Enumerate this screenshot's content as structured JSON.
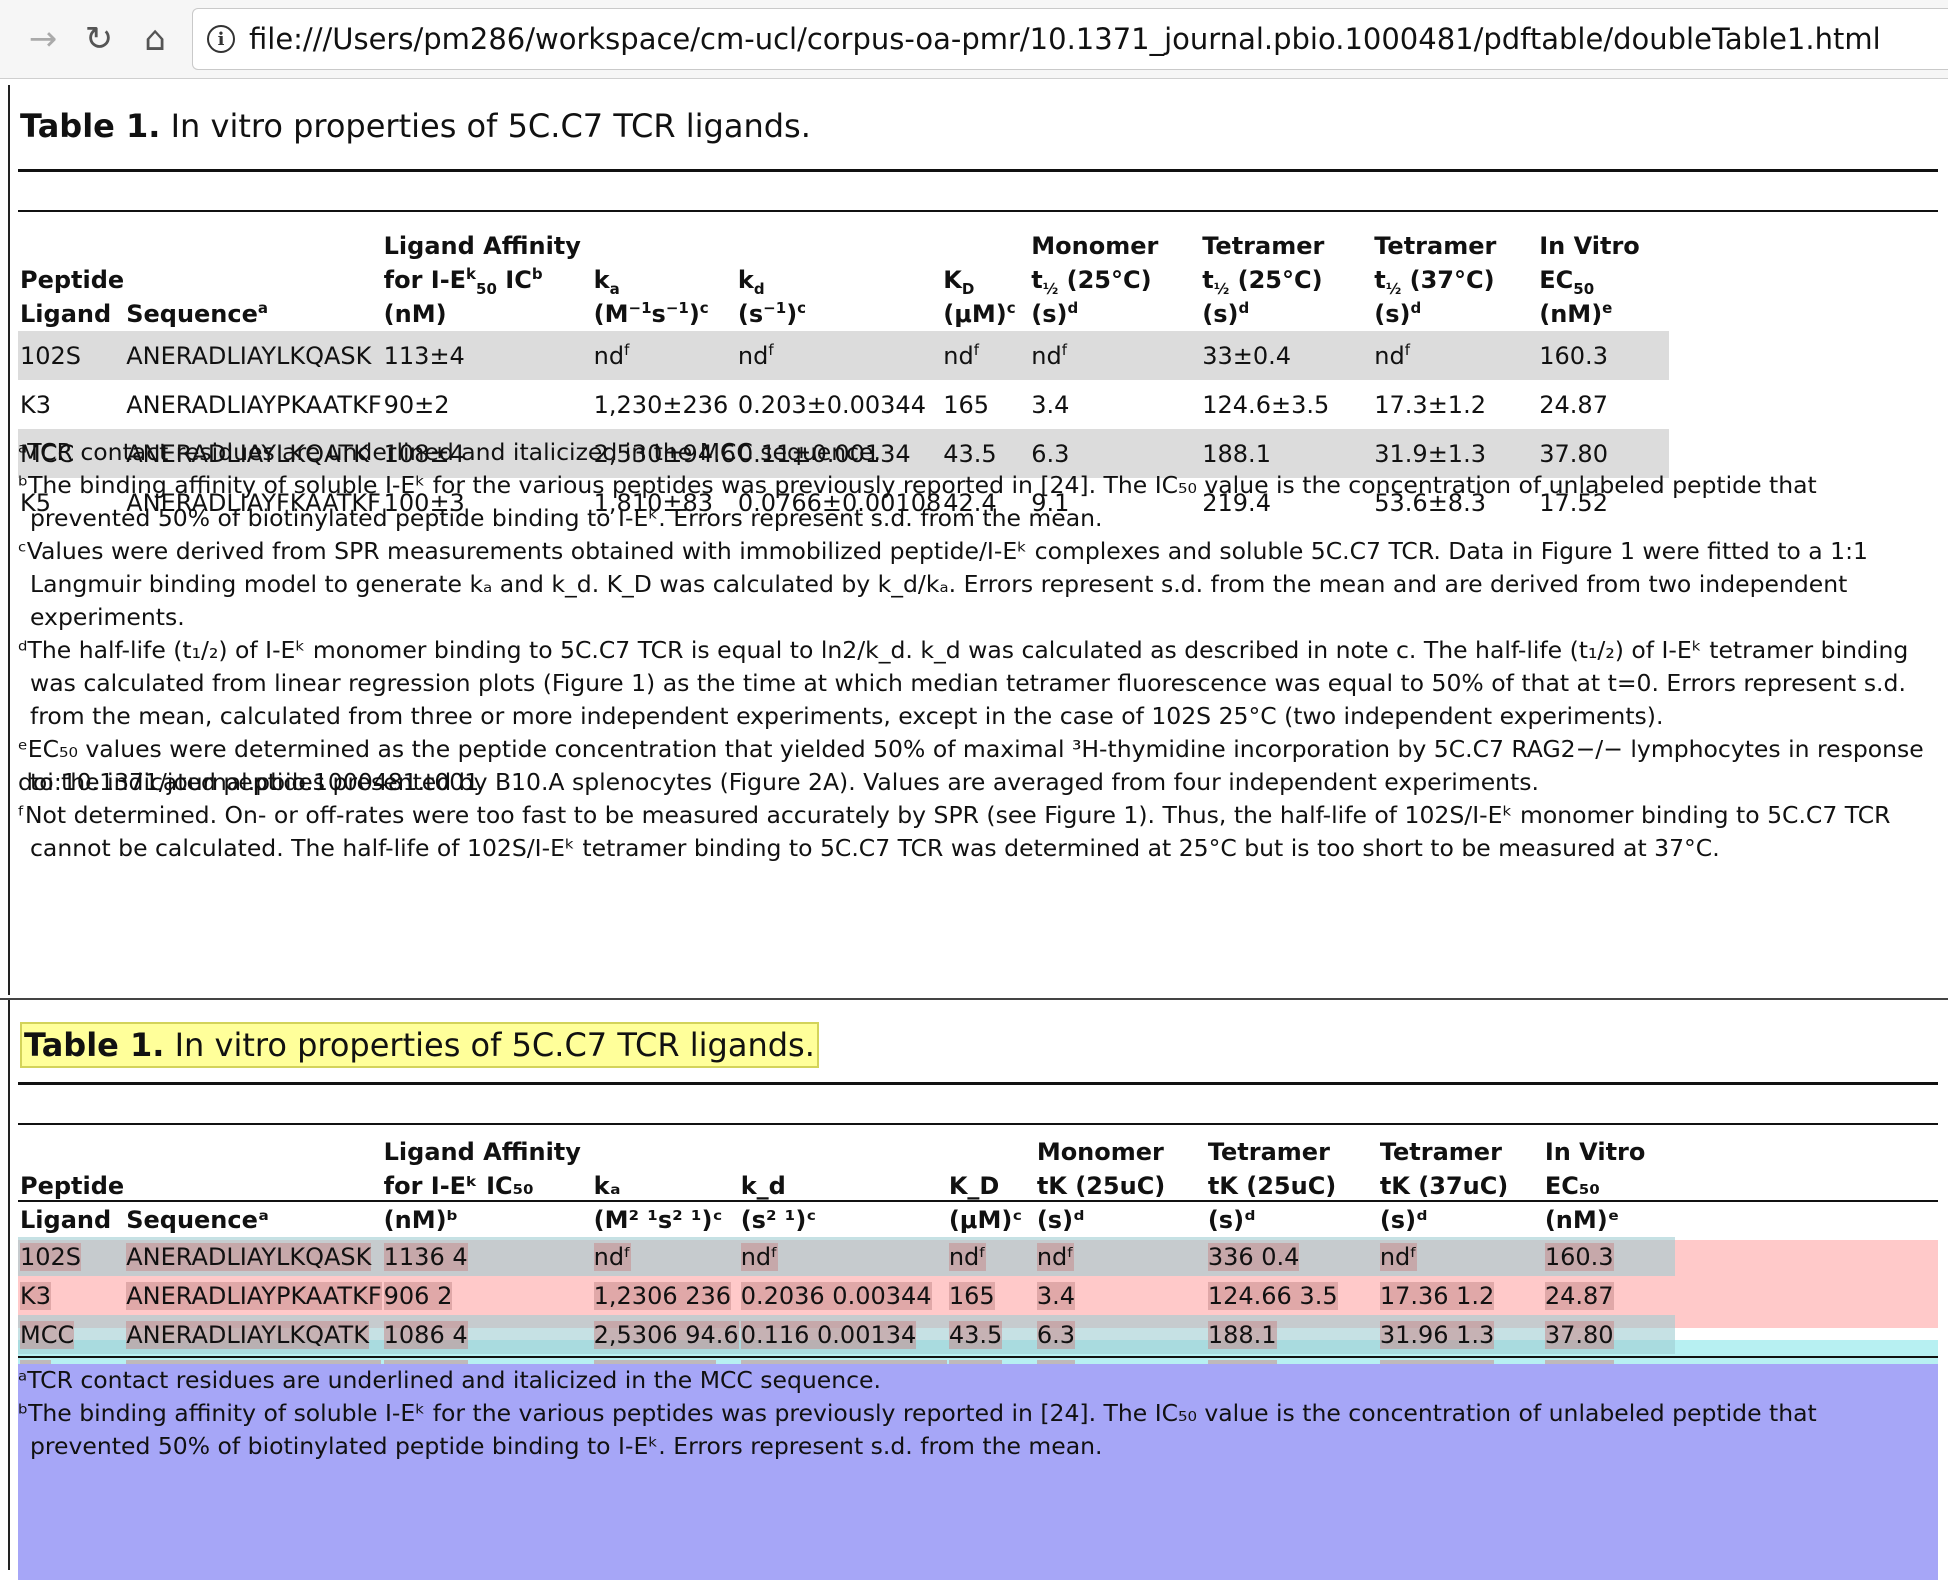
{
  "browser": {
    "url": "file:///Users/pm286/workspace/cm-ucl/corpus-oa-pmr/10.1371_journal.pbio.1000481/pdftable/doubleTable1.html",
    "forward_icon": "arrow-right-icon",
    "reload_icon": "reload-icon",
    "home_icon": "home-icon",
    "info_icon": "info-icon"
  },
  "table": {
    "caption_label": "Table 1.",
    "caption_text": "In vitro properties of 5C.C7 TCR ligands.",
    "headers": [
      {
        "l1": "Peptide",
        "l2": "Ligand"
      },
      {
        "l1": "",
        "l2": "Sequence",
        "sup2": "a"
      },
      {
        "l1": "Ligand Affinity",
        "l2": "for I-E",
        "sup2": "k",
        "l2b": " IC",
        "sub2": "50",
        "l2c": " (nM)",
        "sup3": "b"
      },
      {
        "l1": "k",
        "sub1": "a",
        "l2": "(M",
        "sup2": "−1",
        "l2b": "s",
        "sup3": "−1",
        "l2c": ")",
        "sup4": "c"
      },
      {
        "l1": "k",
        "sub1": "d",
        "l2": "(s",
        "sup2": "−1",
        "l2b": ")",
        "sup3": "c"
      },
      {
        "l1": "K",
        "sub1": "D",
        "l2": "(μM)",
        "sup2": "c"
      },
      {
        "l1": "Monomer",
        "l2": "t",
        "sub2": "½",
        "l2b": " (25°C) (s)",
        "sup3": "d"
      },
      {
        "l1": "Tetramer",
        "l2": "t",
        "sub2": "½",
        "l2b": " (25°C) (s)",
        "sup3": "d"
      },
      {
        "l1": "Tetramer",
        "l2": "t",
        "sub2": "½",
        "l2b": " (37°C) (s)",
        "sup3": "d"
      },
      {
        "l1": "In Vitro",
        "l2": "EC",
        "sub2": "50",
        "l2b": " (nM)",
        "sup3": "e"
      }
    ],
    "rows": [
      [
        "102S",
        "ANERADLIAYLKQASK",
        "113±4",
        "nd",
        "nd",
        "nd",
        "nd",
        "33±0.4",
        "nd",
        "160.3"
      ],
      [
        "K3",
        "ANERADLIAYPKAATKF",
        "90±2",
        "1,230±236",
        "0.203±0.00344",
        "165",
        "3.4",
        "124.6±3.5",
        "17.3±1.2",
        "24.87"
      ],
      [
        "MCC",
        "ANERADLIAYLKQATK",
        "108±4",
        "2,530±94.6",
        "0.11±0.00134",
        "43.5",
        "6.3",
        "188.1",
        "31.9±1.3",
        "37.80"
      ],
      [
        "K5",
        "ANERADLIAYFKAATKF",
        "100±3",
        "1,810±83",
        "0.0766±0.00108",
        "42.4",
        "9.1",
        "219.4",
        "53.6±8.3",
        "17.52"
      ]
    ],
    "nd_sup": "f",
    "notes": [
      "ᵃTCR contact residues are underlined and italicized in the MCC sequence.",
      "ᵇThe binding affinity of soluble I-Eᵏ for the various peptides was previously reported in [24]. The IC₅₀ value is the concentration of unlabeled peptide that prevented 50% of biotinylated peptide binding to I-Eᵏ. Errors represent s.d. from the mean.",
      "ᶜValues were derived from SPR measurements obtained with immobilized peptide/I-Eᵏ complexes and soluble 5C.C7 TCR. Data in Figure 1 were fitted to a 1:1 Langmuir binding model to generate kₐ and k_d. K_D was calculated by k_d/kₐ. Errors represent s.d. from the mean and are derived from two independent experiments.",
      "ᵈThe half-life (t₁/₂) of I-Eᵏ monomer binding to 5C.C7 TCR is equal to ln2/k_d. k_d was calculated as described in note c. The half-life (t₁/₂) of I-Eᵏ tetramer binding was calculated from linear regression plots (Figure 1) as the time at which median tetramer fluorescence was equal to 50% of that at t=0. Errors represent s.d. from the mean, calculated from three or more independent experiments, except in the case of 102S 25°C (two independent experiments).",
      "ᵉEC₅₀ values were determined as the peptide concentration that yielded 50% of maximal ³H-thymidine incorporation by 5C.C7 RAG2−/− lymphocytes in response to the indicated peptides presented by B10.A splenocytes (Figure 2A). Values are averaged from four independent experiments.",
      "ᶠNot determined. On- or off-rates were too fast to be measured accurately by SPR (see Figure 1). Thus, the half-life of 102S/I-Eᵏ monomer binding to 5C.C7 TCR cannot be calculated. The half-life of 102S/I-Eᵏ tetramer binding to 5C.C7 TCR was determined at 25°C but is too short to be measured at 37°C."
    ],
    "doi": "doi:10.1371/journal.pbio.1000481.t001"
  },
  "extracted": {
    "headers": [
      {
        "l1": "Peptide",
        "l2": "Ligand"
      },
      {
        "l1": "",
        "l2": "Sequenceᵃ"
      },
      {
        "l1": "Ligand Affinity",
        "l2": "for I-Eᵏ IC₅₀ (nM)ᵇ"
      },
      {
        "l1": "kₐ",
        "l2": "(M² ¹s² ¹)ᶜ"
      },
      {
        "l1": "k_d",
        "l2": "(s² ¹)ᶜ"
      },
      {
        "l1": "K_D",
        "l2": "(μM)ᶜ"
      },
      {
        "l1": "Monomer",
        "l2": "tK (25uC) (s)ᵈ"
      },
      {
        "l1": "Tetramer",
        "l2": "tK (25uC) (s)ᵈ"
      },
      {
        "l1": "Tetramer",
        "l2": "tK (37uC) (s)ᵈ"
      },
      {
        "l1": "In Vitro",
        "l2": "EC₅₀ (nM)ᵉ"
      }
    ],
    "rows": [
      [
        "102S",
        "ANERADLIAYLKQASK",
        "1136 4",
        "ndᶠ",
        "ndᶠ",
        "ndᶠ",
        "ndᶠ",
        "336 0.4",
        "ndᶠ",
        "160.3"
      ],
      [
        "K3",
        "ANERADLIAYPKAATKF",
        "906 2",
        "1,2306 236",
        "0.2036 0.00344",
        "165",
        "3.4",
        "124.66 3.5",
        "17.36 1.2",
        "24.87"
      ],
      [
        "MCC",
        "ANERADLIAYLKQATK",
        "1086 4",
        "2,5306 94.6",
        "0.116 0.00134",
        "43.5",
        "6.3",
        "188.1",
        "31.96 1.3",
        "37.80"
      ],
      [
        "K5",
        "ANERADLIAYFKAATKF",
        "1006 3",
        "1,8106 83",
        "0.07666 0.00108",
        "42.4",
        "9.1",
        "219.4",
        "53.66 8.3",
        "17.52"
      ]
    ],
    "notes": [
      "ᵃTCR contact residues are underlined and italicized in the MCC sequence.",
      "ᵇThe binding affinity of soluble I-Eᵏ for the various peptides was previously reported in [24]. The IC₅₀ value is the concentration of unlabeled peptide that prevented 50% of biotinylated peptide binding to I-Eᵏ. Errors represent s.d. from the mean."
    ]
  },
  "colors": {
    "title_highlight": "#ffff9a",
    "header_anno": "#ffc9c9",
    "body_anno": "#b7f0f2",
    "notes_anno": "#a6a6f7",
    "cell_box": "#c6ab9c",
    "row_shade": "#dcdcdc"
  }
}
